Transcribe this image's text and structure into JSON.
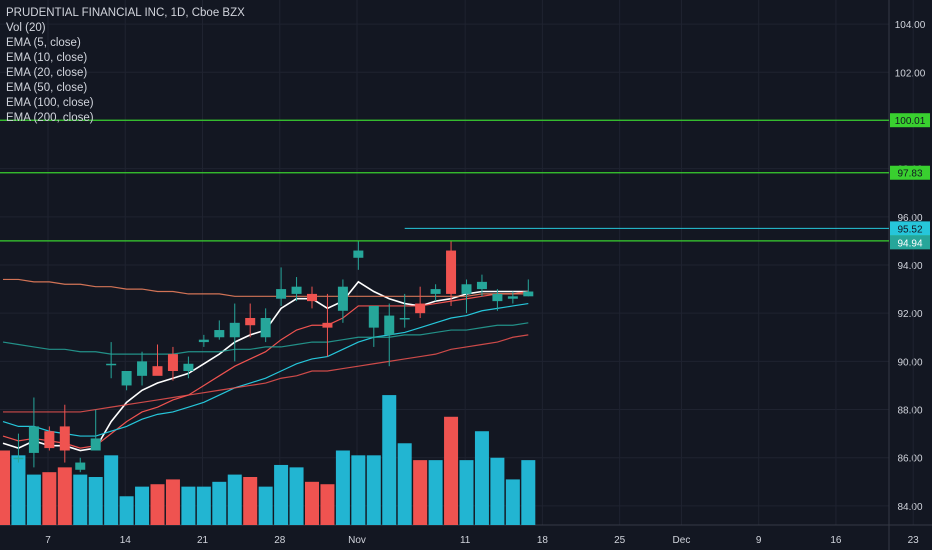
{
  "legend": {
    "title": "PRUDENTIAL FINANCIAL INC, 1D, Cboe BZX",
    "volume": "Vol (20)",
    "ema5": "EMA (5, close)",
    "ema10": "EMA (10, close)",
    "ema20": "EMA (20, close)",
    "ema50": "EMA (50, close)",
    "ema100": "EMA (100, close)",
    "ema200": "EMA (200, close)"
  },
  "colors": {
    "background": "#131722",
    "grid": "#1f2330",
    "up": "#26a69a",
    "down": "#ef5350",
    "volume_up": "#22b5d2",
    "volume_down": "#ef5350",
    "level_line": "#39d02f",
    "last_price_line": "#26c6da",
    "ema5": "#ffffff",
    "ema10": "#ef5350",
    "ema20": "#26c6da",
    "ema100": "#ef5350",
    "ema200": "#f4845f",
    "ema50": "#26a69a",
    "axis_text": "#d1d4dc"
  },
  "chart_data": {
    "type": "candlestick",
    "title": "PRUDENTIAL FINANCIAL INC, 1D, Cboe BZX",
    "y_axis": {
      "range": [
        83.0,
        105.0
      ],
      "ticks": [
        "84.00",
        "86.00",
        "88.00",
        "90.00",
        "92.00",
        "94.00",
        "96.00",
        "98.00",
        "100.00",
        "102.00",
        "104.00"
      ]
    },
    "x_axis": {
      "range_days": [
        0,
        35
      ],
      "ticks": [
        {
          "label": "7",
          "day": 0
        },
        {
          "label": "14",
          "day": 5
        },
        {
          "label": "21",
          "day": 10
        },
        {
          "label": "28",
          "day": 15
        },
        {
          "label": "Nov",
          "day": 20
        },
        {
          "label": "11",
          "day": 27
        },
        {
          "label": "18",
          "day": 32
        },
        {
          "label": "25",
          "day": 37
        },
        {
          "label": "Dec",
          "day": 41
        },
        {
          "label": "9",
          "day": 46
        },
        {
          "label": "16",
          "day": 51
        },
        {
          "label": "23",
          "day": 56
        }
      ]
    },
    "candles": [
      {
        "o": 86.3,
        "h": 86.3,
        "l": 86.0,
        "c": 86.0,
        "v": 86.3
      },
      {
        "o": 86.0,
        "h": 87.0,
        "l": 85.8,
        "c": 86.0,
        "v": 86.1
      },
      {
        "o": 86.2,
        "h": 88.5,
        "l": 85.6,
        "c": 87.3,
        "v": 85.3
      },
      {
        "o": 87.1,
        "h": 87.3,
        "l": 86.3,
        "c": 86.4,
        "v": 85.4
      },
      {
        "o": 87.3,
        "h": 88.2,
        "l": 85.8,
        "c": 86.3,
        "v": 85.6
      },
      {
        "o": 85.5,
        "h": 86.0,
        "l": 85.4,
        "c": 85.8,
        "v": 85.3
      },
      {
        "o": 86.3,
        "h": 88.0,
        "l": 86.3,
        "c": 86.8,
        "v": 85.2
      },
      {
        "o": 89.9,
        "h": 90.8,
        "l": 89.3,
        "c": 89.9,
        "v": 86.1
      },
      {
        "o": 89.0,
        "h": 89.4,
        "l": 88.8,
        "c": 89.6,
        "v": 84.4
      },
      {
        "o": 89.4,
        "h": 90.4,
        "l": 89.0,
        "c": 90.0,
        "v": 84.8
      },
      {
        "o": 89.8,
        "h": 90.7,
        "l": 89.6,
        "c": 89.4,
        "v": 84.9
      },
      {
        "o": 90.3,
        "h": 90.6,
        "l": 89.2,
        "c": 89.6,
        "v": 85.1
      },
      {
        "o": 89.6,
        "h": 90.2,
        "l": 89.3,
        "c": 89.9,
        "v": 84.8
      },
      {
        "o": 90.8,
        "h": 91.1,
        "l": 90.6,
        "c": 90.9,
        "v": 84.8
      },
      {
        "o": 91.0,
        "h": 91.7,
        "l": 90.9,
        "c": 91.3,
        "v": 85.0
      },
      {
        "o": 91.0,
        "h": 92.4,
        "l": 90.0,
        "c": 91.6,
        "v": 85.3
      },
      {
        "o": 91.8,
        "h": 92.4,
        "l": 91.0,
        "c": 91.5,
        "v": 85.2
      },
      {
        "o": 91.0,
        "h": 92.2,
        "l": 90.8,
        "c": 91.8,
        "v": 84.8
      },
      {
        "o": 92.6,
        "h": 93.9,
        "l": 92.3,
        "c": 93.0,
        "v": 85.7
      },
      {
        "o": 92.8,
        "h": 93.5,
        "l": 92.5,
        "c": 93.1,
        "v": 85.6
      },
      {
        "o": 92.8,
        "h": 93.1,
        "l": 92.2,
        "c": 92.5,
        "v": 85.0
      },
      {
        "o": 91.6,
        "h": 92.8,
        "l": 90.2,
        "c": 91.4,
        "v": 84.9
      },
      {
        "o": 92.1,
        "h": 93.4,
        "l": 91.6,
        "c": 93.1,
        "v": 86.3
      },
      {
        "o": 94.3,
        "h": 95.0,
        "l": 93.8,
        "c": 94.6,
        "v": 86.1
      },
      {
        "o": 91.4,
        "h": 92.3,
        "l": 90.6,
        "c": 92.3,
        "v": 86.1
      },
      {
        "o": 91.1,
        "h": 92.4,
        "l": 89.8,
        "c": 91.9,
        "v": 88.6
      },
      {
        "o": 91.8,
        "h": 92.8,
        "l": 91.4,
        "c": 91.8,
        "v": 86.6
      },
      {
        "o": 92.4,
        "h": 93.1,
        "l": 91.8,
        "c": 92.0,
        "v": 85.9
      },
      {
        "o": 92.8,
        "h": 93.2,
        "l": 92.5,
        "c": 93.0,
        "v": 85.9
      },
      {
        "o": 94.6,
        "h": 95.0,
        "l": 92.3,
        "c": 92.8,
        "v": 87.7
      },
      {
        "o": 92.8,
        "h": 93.4,
        "l": 92.0,
        "c": 93.2,
        "v": 85.9
      },
      {
        "o": 93.0,
        "h": 93.6,
        "l": 92.7,
        "c": 93.3,
        "v": 87.1
      },
      {
        "o": 92.5,
        "h": 93.0,
        "l": 92.1,
        "c": 92.8,
        "v": 86.0
      },
      {
        "o": 92.6,
        "h": 92.9,
        "l": 92.4,
        "c": 92.7,
        "v": 85.1
      },
      {
        "o": 92.7,
        "h": 93.4,
        "l": 92.7,
        "c": 92.9,
        "v": 85.9
      }
    ],
    "series": [
      {
        "name": "EMA (5, close)",
        "values": [
          86.6,
          86.4,
          86.7,
          86.5,
          86.5,
          86.3,
          86.4,
          87.5,
          88.3,
          88.8,
          89.1,
          89.3,
          89.5,
          89.9,
          90.3,
          90.8,
          91.1,
          91.3,
          92.2,
          92.6,
          92.6,
          92.2,
          92.5,
          93.3,
          92.9,
          92.6,
          92.4,
          92.3,
          92.5,
          92.6,
          92.8,
          92.9,
          92.9,
          92.9,
          92.9
        ]
      },
      {
        "name": "EMA (10, close)",
        "values": [
          86.9,
          86.7,
          86.8,
          86.7,
          86.6,
          86.4,
          86.5,
          87.0,
          87.5,
          87.9,
          88.1,
          88.4,
          88.6,
          89.0,
          89.4,
          89.8,
          90.1,
          90.4,
          90.9,
          91.3,
          91.5,
          91.5,
          91.8,
          92.3,
          92.3,
          92.3,
          92.3,
          92.3,
          92.4,
          92.5,
          92.6,
          92.7,
          92.8,
          92.8,
          92.9
        ]
      },
      {
        "name": "EMA (20, close)",
        "values": [
          87.5,
          87.3,
          87.3,
          87.1,
          87.0,
          86.9,
          86.9,
          87.1,
          87.3,
          87.6,
          87.8,
          87.9,
          88.1,
          88.3,
          88.6,
          88.9,
          89.1,
          89.3,
          89.6,
          89.9,
          90.1,
          90.2,
          90.5,
          90.8,
          91.0,
          91.1,
          91.2,
          91.4,
          91.6,
          91.8,
          91.9,
          92.1,
          92.2,
          92.3,
          92.4
        ]
      },
      {
        "name": "EMA (50, close)",
        "values": [
          90.8,
          90.7,
          90.6,
          90.5,
          90.5,
          90.4,
          90.4,
          90.3,
          90.3,
          90.3,
          90.3,
          90.3,
          90.4,
          90.4,
          90.4,
          90.5,
          90.5,
          90.6,
          90.6,
          90.7,
          90.8,
          90.8,
          90.9,
          91.0,
          91.0,
          91.0,
          91.1,
          91.1,
          91.2,
          91.3,
          91.3,
          91.4,
          91.5,
          91.5,
          91.6
        ]
      },
      {
        "name": "EMA (100, close)",
        "values": [
          87.9,
          87.9,
          87.9,
          87.9,
          87.9,
          87.9,
          88.0,
          88.1,
          88.2,
          88.3,
          88.4,
          88.5,
          88.6,
          88.7,
          88.8,
          88.9,
          89.0,
          89.1,
          89.3,
          89.4,
          89.6,
          89.6,
          89.7,
          89.8,
          89.9,
          90.0,
          90.1,
          90.2,
          90.3,
          90.5,
          90.6,
          90.7,
          90.8,
          91.0,
          91.1
        ]
      },
      {
        "name": "EMA (200, close)",
        "values": [
          93.4,
          93.4,
          93.3,
          93.3,
          93.2,
          93.2,
          93.1,
          93.1,
          93.0,
          93.0,
          92.9,
          92.9,
          92.8,
          92.8,
          92.8,
          92.7,
          92.7,
          92.7,
          92.7,
          92.7,
          92.7,
          92.7,
          92.7,
          92.7,
          92.7,
          92.7,
          92.7,
          92.7,
          92.7,
          92.7,
          92.7,
          92.8,
          92.8,
          92.8,
          92.8
        ]
      }
    ],
    "levels": [
      {
        "value": 100.01,
        "label": "100.01",
        "color": "#39d02f"
      },
      {
        "value": 97.83,
        "label": "97.83",
        "color": "#39d02f"
      },
      {
        "value": 95.0,
        "label": "95.00",
        "color": "#39d02f"
      }
    ],
    "last_line": {
      "value": 95.52,
      "label": "95.52",
      "start_day": 26
    },
    "last_price": {
      "value": 94.94,
      "label": "94.94"
    },
    "grid": true,
    "legend_position": "top-left"
  }
}
